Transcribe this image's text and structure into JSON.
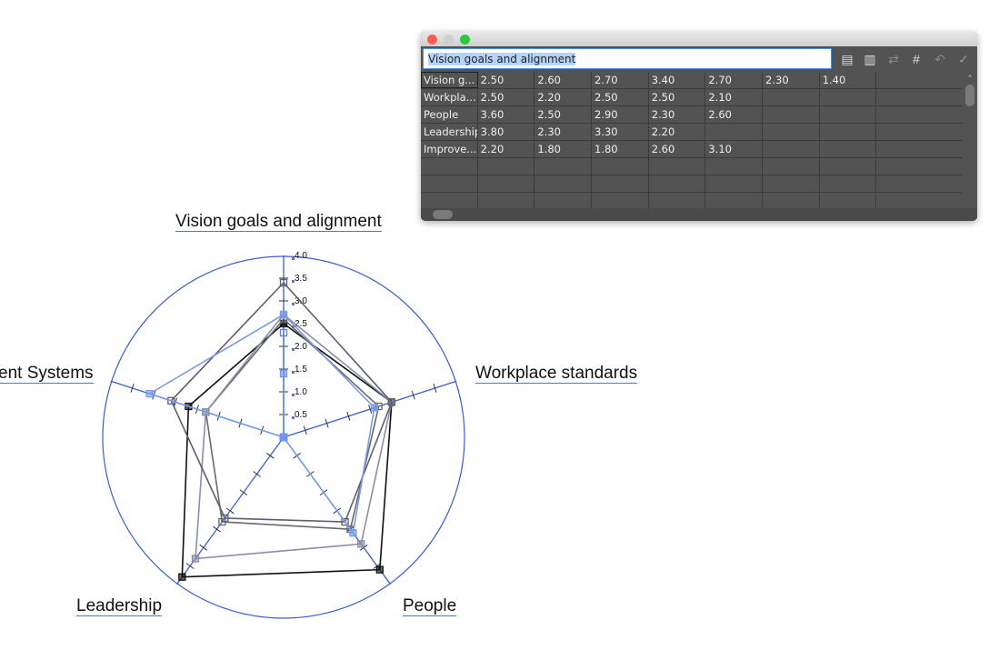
{
  "chart_data": {
    "type": "radar",
    "axes": [
      "Vision goals and alignment",
      "Workplace standards",
      "People",
      "Leadership",
      "ent Systems"
    ],
    "rlim": [
      0,
      4.0
    ],
    "ticks": [
      "0.5",
      "1.0",
      "1.5",
      "2.0",
      "2.5",
      "3.0",
      "3.5",
      "4.0"
    ],
    "series": [
      {
        "values": [
          2.5,
          2.5,
          3.6,
          3.8,
          2.2
        ],
        "color": "#111111"
      },
      {
        "values": [
          2.6,
          2.2,
          2.5,
          2.3,
          1.8
        ],
        "color": "#6a6a6a"
      },
      {
        "values": [
          2.7,
          2.5,
          2.9,
          3.3,
          1.8
        ],
        "color": "#8a8fa8"
      },
      {
        "values": [
          3.4,
          2.5,
          2.3,
          2.2,
          2.6
        ],
        "color": "#5a6070"
      },
      {
        "values": [
          2.7,
          2.1,
          2.6,
          0,
          3.1
        ],
        "color": "#7a9be8"
      },
      {
        "values": [
          2.3,
          0,
          0,
          0,
          0
        ],
        "color": "#5b82e6"
      },
      {
        "values": [
          1.4,
          0,
          0,
          0,
          0
        ],
        "color": "#6d95f0"
      }
    ],
    "grid": false,
    "accent": "#3a5fcd"
  },
  "window": {
    "cell_value": "Vision goals and alignment",
    "toolbar": [
      "import-data-icon",
      "transpose-icon",
      "switch-xy-icon",
      "cell-style-icon",
      "revert-icon",
      "apply-icon"
    ],
    "rows": [
      [
        "Vision g...",
        "2.50",
        "2.60",
        "2.70",
        "3.40",
        "2.70",
        "2.30",
        "1.40"
      ],
      [
        "Workpla...",
        "2.50",
        "2.20",
        "2.50",
        "2.50",
        "2.10",
        "",
        ""
      ],
      [
        "People",
        "3.60",
        "2.50",
        "2.90",
        "2.30",
        "2.60",
        "",
        ""
      ],
      [
        "Leadership",
        "3.80",
        "2.30",
        "3.30",
        "2.20",
        "",
        "",
        ""
      ],
      [
        "Improve...",
        "2.20",
        "1.80",
        "1.80",
        "2.60",
        "3.10",
        "",
        ""
      ],
      [
        "",
        "",
        "",
        "",
        "",
        "",
        "",
        ""
      ],
      [
        "",
        "",
        "",
        "",
        "",
        "",
        "",
        ""
      ],
      [
        "",
        "",
        "",
        "",
        "",
        "",
        "",
        ""
      ]
    ]
  }
}
